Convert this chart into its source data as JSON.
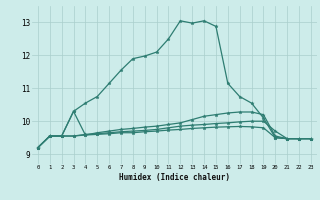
{
  "bg_color": "#cdecea",
  "line_color": "#2e7d72",
  "grid_color": "#aacfcc",
  "xlabel": "Humidex (Indice chaleur)",
  "xlim": [
    -0.5,
    23.5
  ],
  "ylim": [
    8.7,
    13.5
  ],
  "yticks": [
    9,
    10,
    11,
    12,
    13
  ],
  "xticks": [
    0,
    1,
    2,
    3,
    4,
    5,
    6,
    7,
    8,
    9,
    10,
    11,
    12,
    13,
    14,
    15,
    16,
    17,
    18,
    19,
    20,
    21,
    22,
    23
  ],
  "series": [
    [
      9.2,
      9.55,
      9.55,
      9.55,
      9.58,
      9.6,
      9.62,
      9.65,
      9.65,
      9.68,
      9.7,
      9.73,
      9.75,
      9.78,
      9.8,
      9.82,
      9.83,
      9.84,
      9.83,
      9.8,
      9.5,
      9.47,
      9.47,
      9.47
    ],
    [
      9.2,
      9.55,
      9.55,
      9.55,
      9.6,
      9.62,
      9.65,
      9.68,
      9.7,
      9.72,
      9.75,
      9.8,
      9.85,
      9.88,
      9.9,
      9.93,
      9.95,
      9.98,
      10.0,
      10.0,
      9.7,
      9.47,
      9.47,
      9.47
    ],
    [
      9.2,
      9.55,
      9.55,
      10.3,
      10.55,
      10.75,
      11.15,
      11.55,
      11.9,
      11.98,
      12.1,
      12.5,
      13.05,
      12.98,
      13.05,
      12.88,
      11.15,
      10.75,
      10.55,
      10.1,
      9.5,
      9.47,
      9.47,
      9.47
    ],
    [
      9.2,
      9.55,
      9.55,
      10.3,
      9.58,
      9.65,
      9.7,
      9.75,
      9.78,
      9.82,
      9.85,
      9.9,
      9.95,
      10.05,
      10.15,
      10.2,
      10.25,
      10.28,
      10.28,
      10.2,
      9.55,
      9.47,
      9.47,
      9.47
    ]
  ]
}
